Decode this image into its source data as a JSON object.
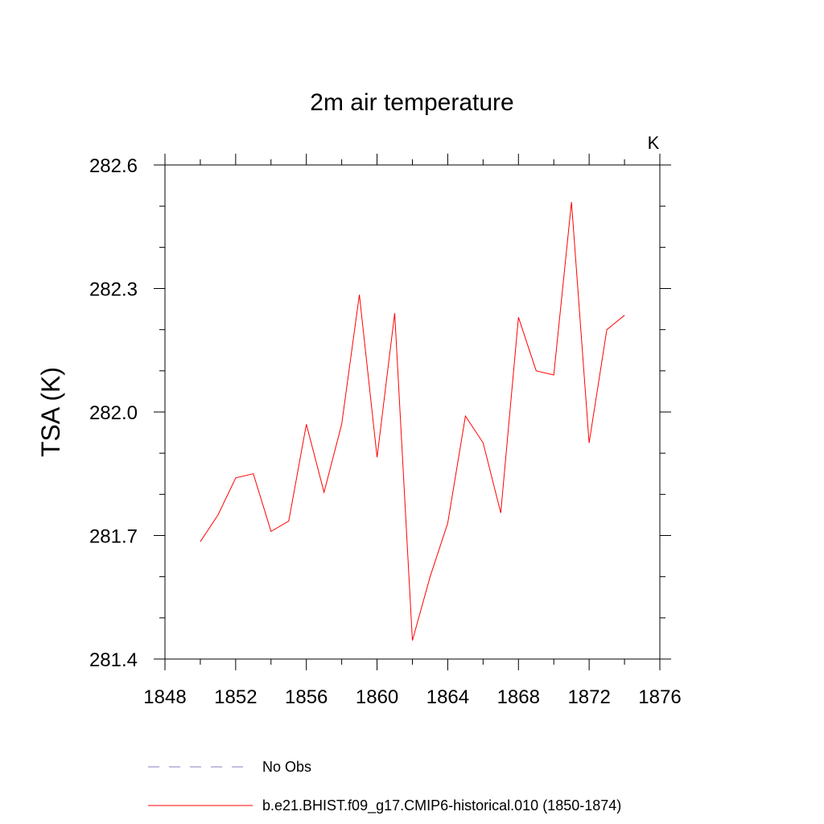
{
  "chart_data": {
    "type": "line",
    "title": "2m air temperature",
    "units_label": "K",
    "xlabel": "",
    "ylabel": "TSA  (K)",
    "xlim": [
      1848,
      1876
    ],
    "ylim": [
      281.4,
      282.6
    ],
    "x_ticks": [
      1848,
      1852,
      1856,
      1860,
      1864,
      1868,
      1872,
      1876
    ],
    "x_tick_labels": [
      "1848",
      "1852",
      "1856",
      "1860",
      "1864",
      "1868",
      "1872",
      "1876"
    ],
    "y_ticks": [
      281.4,
      281.7,
      282.0,
      282.3,
      282.6
    ],
    "y_tick_labels": [
      "281.4",
      "281.7",
      "282.0",
      "282.3",
      "282.6"
    ],
    "grid": false,
    "legend_position": "bottom",
    "series": [
      {
        "name": "b.e21.BHIST.f09_g17.CMIP6-historical.010 (1850-1874)",
        "color": "#ff0000",
        "style": "solid",
        "x": [
          1850,
          1851,
          1852,
          1853,
          1854,
          1855,
          1856,
          1857,
          1858,
          1859,
          1860,
          1861,
          1862,
          1863,
          1864,
          1865,
          1866,
          1867,
          1868,
          1869,
          1870,
          1871,
          1872,
          1873,
          1874
        ],
        "y": [
          281.685,
          281.75,
          281.84,
          281.85,
          281.71,
          281.735,
          281.97,
          281.805,
          281.97,
          282.285,
          281.89,
          282.24,
          281.445,
          281.6,
          281.73,
          281.99,
          281.925,
          281.755,
          282.23,
          282.1,
          282.09,
          282.51,
          281.925,
          282.2,
          282.235
        ]
      },
      {
        "name": "No Obs",
        "color": "#8080c0",
        "style": "dashed",
        "x": [],
        "y": []
      }
    ]
  }
}
